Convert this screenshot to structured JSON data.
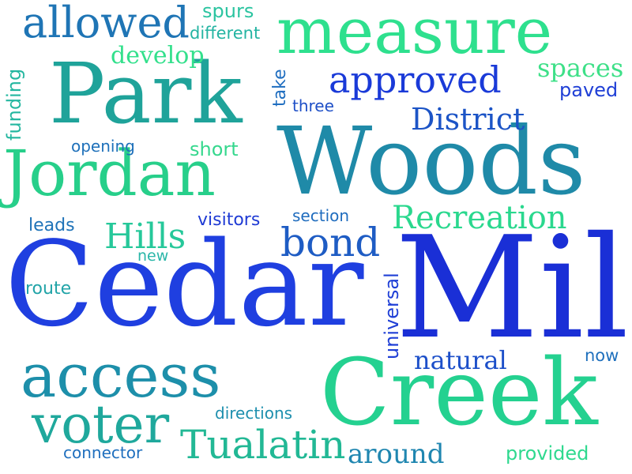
{
  "words": [
    {
      "id": "cedar",
      "text": "Cedar",
      "color": "#1f3fe0"
    },
    {
      "id": "mill",
      "text": "Mill",
      "color": "#1a2fd6"
    },
    {
      "id": "woods",
      "text": "Woods",
      "color": "#1f8aa8"
    },
    {
      "id": "park",
      "text": "Park",
      "color": "#1fa39a"
    },
    {
      "id": "creek",
      "text": "Creek",
      "color": "#24d190"
    },
    {
      "id": "measure",
      "text": "measure",
      "color": "#2ee08e"
    },
    {
      "id": "jordan",
      "text": "Jordan",
      "color": "#27cf8a"
    },
    {
      "id": "access",
      "text": "access",
      "color": "#1d8faa"
    },
    {
      "id": "voter",
      "text": "voter",
      "color": "#1fa89c"
    },
    {
      "id": "approved",
      "text": "approved",
      "color": "#1a3ad8"
    },
    {
      "id": "allowed",
      "text": "allowed",
      "color": "#1f75b5"
    },
    {
      "id": "tualatin",
      "text": "Tualatin",
      "color": "#22b895"
    },
    {
      "id": "recreation",
      "text": "Recreation",
      "color": "#2ad88e"
    },
    {
      "id": "bond",
      "text": "bond",
      "color": "#1e5cc4"
    },
    {
      "id": "district",
      "text": "District",
      "color": "#1c54c6"
    },
    {
      "id": "hills",
      "text": "Hills",
      "color": "#26c89a"
    },
    {
      "id": "develop",
      "text": "develop",
      "color": "#33e08c"
    },
    {
      "id": "spaces",
      "text": "spaces",
      "color": "#3ee088"
    },
    {
      "id": "around",
      "text": "around",
      "color": "#1f86b0"
    },
    {
      "id": "natural",
      "text": "natural",
      "color": "#1c4fc9"
    },
    {
      "id": "spurs",
      "text": "spurs",
      "color": "#2bc4a0"
    },
    {
      "id": "different",
      "text": "different",
      "color": "#24b4a2"
    },
    {
      "id": "paved",
      "text": "paved",
      "color": "#1f3fd6"
    },
    {
      "id": "three",
      "text": "three",
      "color": "#1e4fc7"
    },
    {
      "id": "opening",
      "text": "opening",
      "color": "#1e70ba"
    },
    {
      "id": "short",
      "text": "short",
      "color": "#36d88e"
    },
    {
      "id": "leads",
      "text": "leads",
      "color": "#1f73b8"
    },
    {
      "id": "visitors",
      "text": "visitors",
      "color": "#1f3bd4"
    },
    {
      "id": "section",
      "text": "section",
      "color": "#1f6cbe"
    },
    {
      "id": "new",
      "text": "new",
      "color": "#2ab6a8"
    },
    {
      "id": "route",
      "text": "route",
      "color": "#22a4a8"
    },
    {
      "id": "now",
      "text": "now",
      "color": "#1f70bd"
    },
    {
      "id": "directions",
      "text": "directions",
      "color": "#1d8fae"
    },
    {
      "id": "connector",
      "text": "connector",
      "color": "#1f6fbe"
    },
    {
      "id": "provided",
      "text": "provided",
      "color": "#2fd98f"
    },
    {
      "id": "take",
      "text": "take",
      "color": "#1f6ec0"
    },
    {
      "id": "funding",
      "text": "funding",
      "color": "#25b7a0"
    },
    {
      "id": "universal",
      "text": "universal",
      "color": "#1f3fd6"
    }
  ]
}
